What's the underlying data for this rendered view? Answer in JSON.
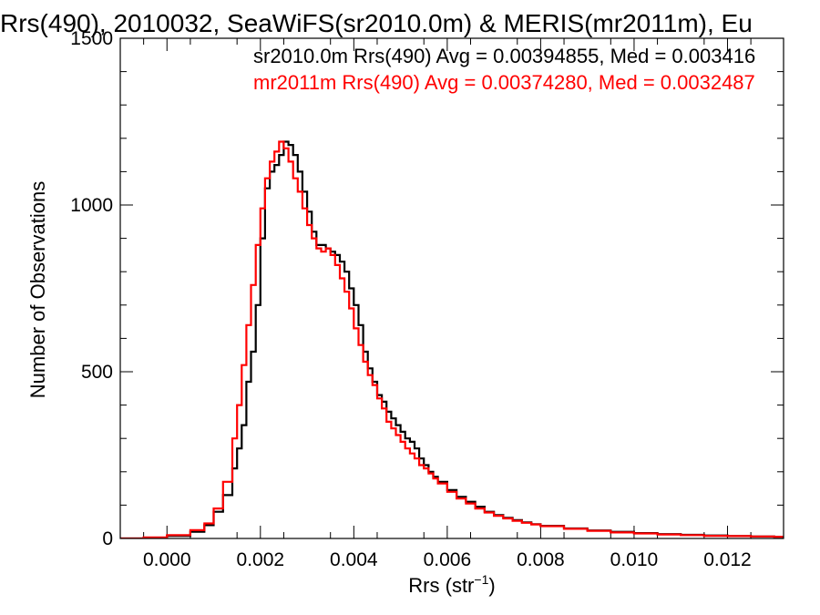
{
  "chart_data": {
    "type": "line",
    "title": "Rrs(490), 2010032, SeaWiFS(sr2010.0m) & MERIS(mr2011m), Eu",
    "xlabel": "Rrs (str",
    "xlabel_sup": "−1",
    "xlabel_close": ")",
    "ylabel": "Number of Observations",
    "xlim": [
      -0.001,
      0.0132
    ],
    "ylim": [
      0,
      1500
    ],
    "x_ticks": [
      0.0,
      0.002,
      0.004,
      0.006,
      0.008,
      0.01,
      0.012
    ],
    "x_tick_labels": [
      "0.000",
      "0.002",
      "0.004",
      "0.006",
      "0.008",
      "0.010",
      "0.012"
    ],
    "y_ticks": [
      0,
      500,
      1000,
      1500
    ],
    "y_tick_labels": [
      "0",
      "500",
      "1000",
      "1500"
    ],
    "annotations": [
      {
        "text": "sr2010.0m Rrs(490) Avg = 0.00394855, Med = 0.003416",
        "color": "#000000"
      },
      {
        "text": "mr2011m Rrs(490) Avg = 0.00374280, Med = 0.0032487",
        "color": "#ff0000"
      }
    ],
    "series": [
      {
        "color": "#000000",
        "x": [
          -0.001,
          -0.0005,
          0.0,
          0.0005,
          0.0008,
          0.001,
          0.0012,
          0.0014,
          0.0015,
          0.0016,
          0.0017,
          0.0018,
          0.0019,
          0.002,
          0.0021,
          0.0022,
          0.0023,
          0.0024,
          0.0025,
          0.0026,
          0.0027,
          0.0028,
          0.0029,
          0.003,
          0.0031,
          0.0032,
          0.0033,
          0.0034,
          0.0035,
          0.0036,
          0.0037,
          0.0038,
          0.0039,
          0.004,
          0.0041,
          0.0042,
          0.0043,
          0.0044,
          0.0045,
          0.0046,
          0.0047,
          0.0048,
          0.0049,
          0.005,
          0.0051,
          0.0052,
          0.0053,
          0.0054,
          0.0055,
          0.0056,
          0.0057,
          0.0058,
          0.006,
          0.0062,
          0.0064,
          0.0066,
          0.0068,
          0.007,
          0.0072,
          0.0074,
          0.0076,
          0.0078,
          0.008,
          0.0085,
          0.009,
          0.0095,
          0.01,
          0.0105,
          0.011,
          0.0115,
          0.012,
          0.0125,
          0.013,
          0.0132
        ],
        "y": [
          0,
          2,
          8,
          20,
          40,
          80,
          130,
          210,
          270,
          340,
          470,
          560,
          700,
          900,
          1050,
          1100,
          1120,
          1150,
          1190,
          1180,
          1150,
          1100,
          1040,
          980,
          920,
          880,
          880,
          870,
          860,
          850,
          830,
          800,
          750,
          700,
          640,
          560,
          510,
          470,
          430,
          410,
          380,
          360,
          340,
          320,
          300,
          290,
          270,
          240,
          220,
          200,
          185,
          170,
          145,
          125,
          110,
          95,
          80,
          70,
          62,
          55,
          48,
          43,
          38,
          30,
          24,
          20,
          16,
          13,
          11,
          9,
          7,
          6,
          5,
          5
        ]
      },
      {
        "color": "#ff0000",
        "x": [
          -0.001,
          -0.0005,
          0.0,
          0.0005,
          0.0008,
          0.001,
          0.0012,
          0.0014,
          0.0015,
          0.0016,
          0.0017,
          0.0018,
          0.0019,
          0.002,
          0.0021,
          0.0022,
          0.0023,
          0.0024,
          0.0025,
          0.0026,
          0.0027,
          0.0028,
          0.0029,
          0.003,
          0.0031,
          0.0032,
          0.0033,
          0.0034,
          0.0035,
          0.0036,
          0.0037,
          0.0038,
          0.0039,
          0.004,
          0.0041,
          0.0042,
          0.0043,
          0.0044,
          0.0045,
          0.0046,
          0.0047,
          0.0048,
          0.0049,
          0.005,
          0.0051,
          0.0052,
          0.0053,
          0.0054,
          0.0055,
          0.0056,
          0.0057,
          0.0058,
          0.006,
          0.0062,
          0.0064,
          0.0066,
          0.0068,
          0.007,
          0.0072,
          0.0074,
          0.0076,
          0.0078,
          0.008,
          0.0085,
          0.009,
          0.0095,
          0.01,
          0.0105,
          0.011,
          0.0115,
          0.012,
          0.0125,
          0.013,
          0.0132
        ],
        "y": [
          0,
          3,
          10,
          25,
          45,
          90,
          170,
          300,
          400,
          520,
          640,
          760,
          880,
          990,
          1080,
          1130,
          1160,
          1190,
          1170,
          1130,
          1080,
          1040,
          990,
          940,
          900,
          870,
          860,
          870,
          850,
          820,
          780,
          740,
          690,
          630,
          580,
          530,
          490,
          460,
          420,
          390,
          350,
          330,
          310,
          290,
          270,
          255,
          240,
          220,
          210,
          195,
          180,
          165,
          140,
          120,
          105,
          90,
          78,
          68,
          60,
          53,
          47,
          42,
          37,
          29,
          23,
          18,
          15,
          12,
          10,
          8,
          7,
          6,
          5,
          5
        ]
      }
    ]
  }
}
